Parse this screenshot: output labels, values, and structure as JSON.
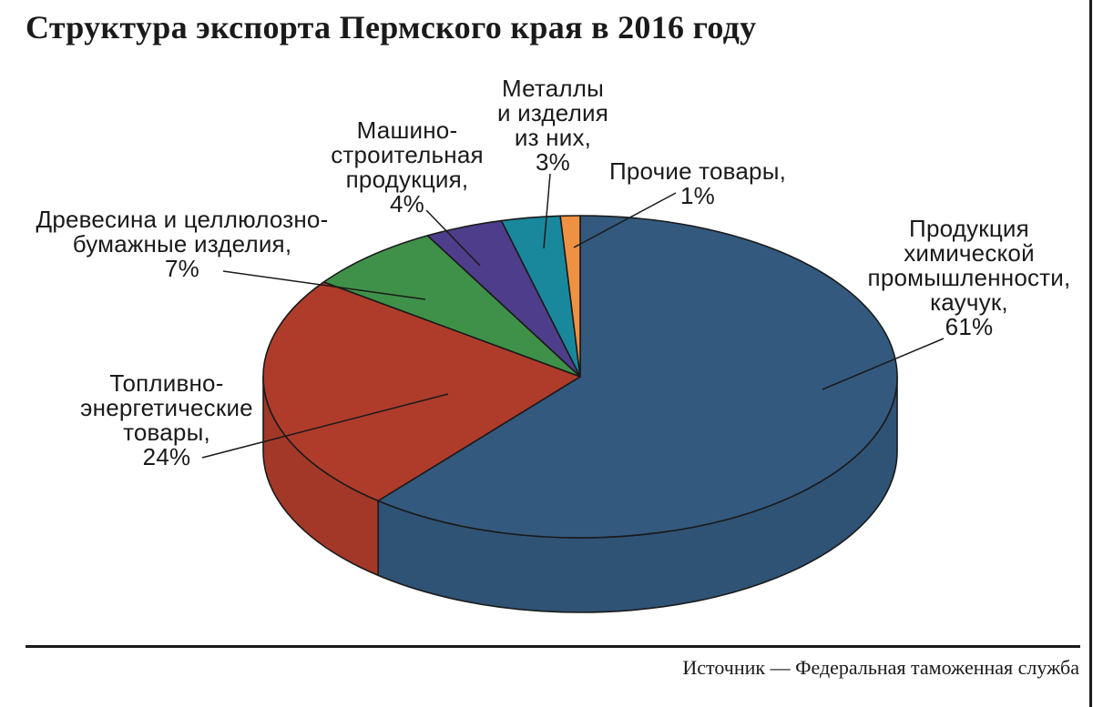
{
  "page": {
    "title": "Структура экспорта Пермского края в 2016 году",
    "source": "Источник — Федеральная таможенная служба"
  },
  "chart_data": {
    "type": "pie",
    "style": "3d",
    "title": "Структура экспорта Пермского края в 2016 году",
    "unit": "%",
    "legend_position": "none",
    "labels_style": "callout-with-leader-lines",
    "start_angle_deg": 0,
    "direction": "clockwise",
    "outline_color": "#1a1a1a",
    "background_color": "#ffffff",
    "slices": [
      {
        "id": "chemical",
        "name": "Продукция химической промышленности, каучук",
        "value": 61,
        "color": "#33597E",
        "label": "Продукция\nхимической\nпромышленности,\nкаучук,\n61%"
      },
      {
        "id": "fuel-energy",
        "name": "Топливно-энергетические товары",
        "value": 24,
        "color": "#AF3C2B",
        "label": "Топливно-\nэнергетические\nтовары,\n24%"
      },
      {
        "id": "wood-pulp",
        "name": "Древесина и целлюлозно-бумажные изделия",
        "value": 7,
        "color": "#3F9149",
        "label": "Древесина и целлюлозно-\nбумажные изделия,\n7%"
      },
      {
        "id": "machinery",
        "name": "Машиностроительная продукция",
        "value": 4,
        "color": "#4E3D8A",
        "label": "Машино-\nстроительная\nпродукция,\n4%"
      },
      {
        "id": "metals",
        "name": "Металлы и изделия из них",
        "value": 3,
        "color": "#19889D",
        "label": "Металлы\nи изделия\nиз них,\n3%"
      },
      {
        "id": "other",
        "name": "Прочие товары",
        "value": 1,
        "color": "#EF9143",
        "label": "Прочие товары,\n1%"
      }
    ]
  }
}
